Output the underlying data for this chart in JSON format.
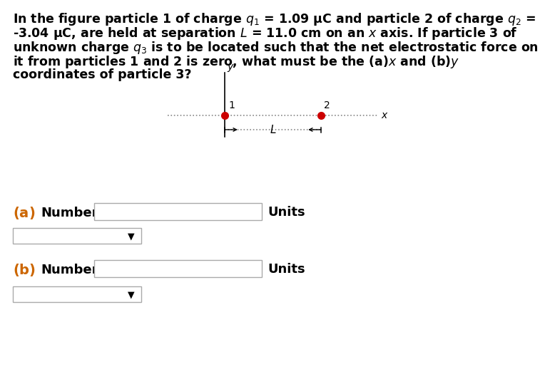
{
  "bg_color": "#ffffff",
  "dot_color": "#cc0000",
  "axis_label_color": "#000000",
  "ab_label_color": "#cc6600",
  "text_color": "#000000",
  "font_size_text": 12.5,
  "font_size_diagram": 11,
  "font_size_ab": 13,
  "font_size_units": 13,
  "line1": "In the figure particle 1 of charge $q_1$ = 1.09 μC and particle 2 of charge $q_2$ =",
  "line2": "-3.04 μC, are held at separation $L$ = 11.0 cm on an $x$ axis. If particle 3 of",
  "line3": "unknown charge $q_3$ is to be located such that the net electrostatic force on",
  "line4": "it from particles 1 and 2 is zero, what must be the $\\mathbf{(a)}$$x$ and $\\mathbf{(b)}$$y$",
  "line5": "coordinates of particle 3?",
  "label1": "1",
  "label2": "2",
  "label_x": "x",
  "label_y": "y",
  "label_L": "$L$"
}
